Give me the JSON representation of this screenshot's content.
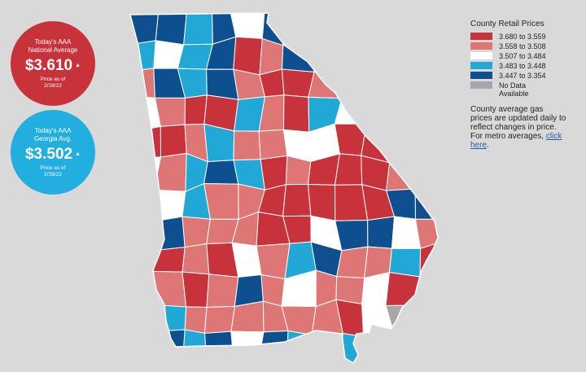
{
  "national": {
    "line1": "Today's AAA",
    "line2": "National Average",
    "price": "$3.610",
    "arrow": "▲",
    "asof_line1": "Price as of",
    "asof_line2": "2/28/22",
    "color": "#c8323a"
  },
  "georgia": {
    "line1": "Today's AAA",
    "line2": "Georgia Avg.",
    "price": "$3.502",
    "arrow": "▲",
    "asof_line1": "Price as of",
    "asof_line2": "2/28/22",
    "color": "#23aee0"
  },
  "legend": {
    "title": "County Retail Prices",
    "items": [
      {
        "label": "3.680 to 3.559",
        "color": "#c8323a"
      },
      {
        "label": "3.558 to 3.508",
        "color": "#df7676"
      },
      {
        "label": "3.507 to 3.484",
        "color": "#ffffff"
      },
      {
        "label": "3.483 to 3.448",
        "color": "#21a8d7"
      },
      {
        "label": "3.447 to 3.354",
        "color": "#0d4f8f"
      },
      {
        "label": "No Data\nAvailable",
        "color": "#a7a7a7"
      }
    ]
  },
  "note": {
    "text": "County average gas prices are updated daily to reflect changes in price. For metro averages, ",
    "link": "click here",
    "end": "."
  },
  "map": {
    "county_border_color": "#ffffff",
    "county_fill_sequence": [
      "blue",
      "blue",
      "light",
      "blue",
      "white",
      "blue",
      "light",
      "blue",
      "light",
      "white",
      "blue",
      "blue",
      "light",
      "white",
      "light",
      "blue",
      "red",
      "pink",
      "blue",
      "light",
      "blue",
      "white",
      "light",
      "red",
      "pink",
      "blue",
      "light",
      "blue",
      "pink",
      "red",
      "red",
      "pink",
      "light",
      "white",
      "light",
      "pink",
      "white",
      "pink",
      "red",
      "red",
      "light",
      "pink",
      "red",
      "light",
      "white",
      "white",
      "red",
      "red",
      "red",
      "red",
      "pink",
      "light",
      "pink",
      "pink",
      "white",
      "white",
      "red",
      "red",
      "red",
      "red",
      "white",
      "pink",
      "light",
      "blue",
      "light",
      "red",
      "pink",
      "red",
      "red",
      "red",
      "pink",
      "blue",
      "red",
      "white",
      "light",
      "pink",
      "pink",
      "red",
      "red",
      "red",
      "red",
      "red",
      "blue",
      "blue",
      "white",
      "blue",
      "pink",
      "pink",
      "pink",
      "red",
      "red",
      "white",
      "blue",
      "blue",
      "white",
      "pink",
      "pink",
      "red",
      "pink",
      "red",
      "white",
      "pink",
      "light",
      "blue",
      "pink",
      "pink",
      "light",
      "red",
      "red",
      "pink",
      "red",
      "pink",
      "blue",
      "pink",
      "white",
      "pink",
      "pink",
      "white",
      "red",
      "white",
      "white",
      "light",
      "pink",
      "pink",
      "pink",
      "pink",
      "pink",
      "pink",
      "red",
      "white",
      "gray",
      "white"
    ]
  }
}
